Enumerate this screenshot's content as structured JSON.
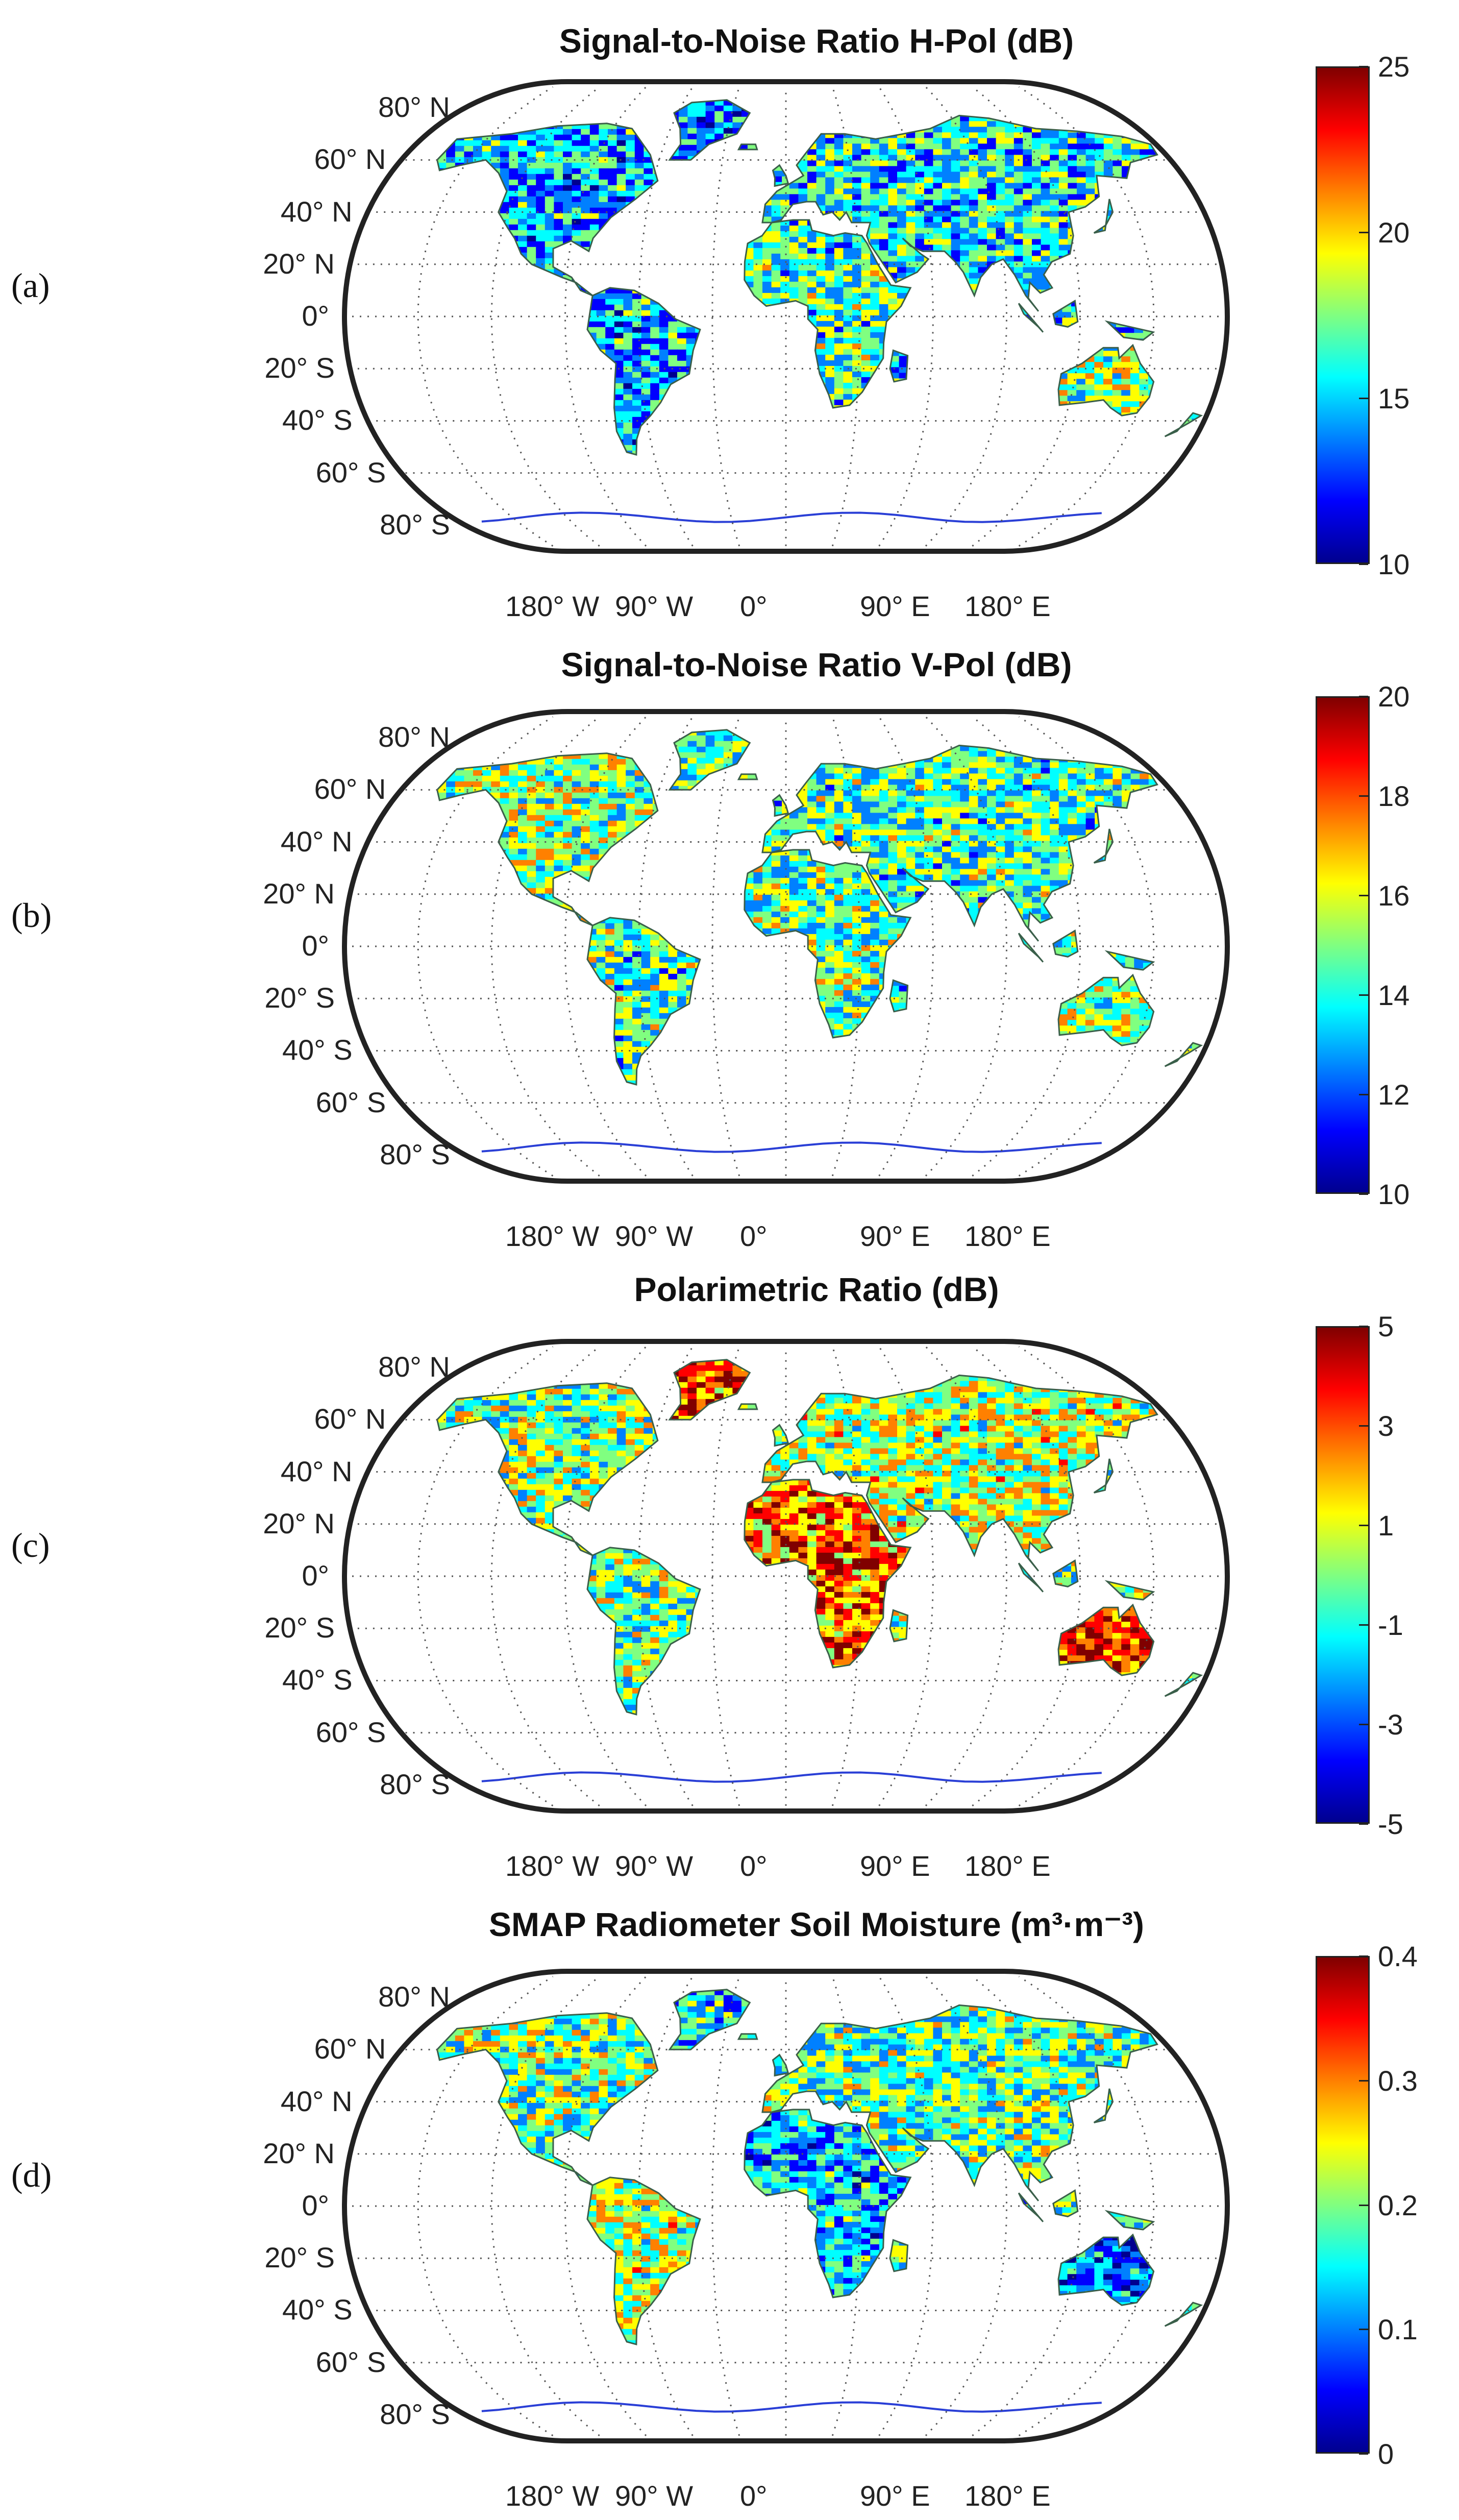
{
  "colors": {
    "jet": [
      "#00008f",
      "#0000ff",
      "#0080ff",
      "#00ffff",
      "#80ff80",
      "#ffff00",
      "#ff8000",
      "#ff0000",
      "#800000"
    ],
    "ocean": "#ffffff",
    "coast": "#2a3fd6",
    "frame": "#222222"
  },
  "lat_labels": [
    "80° N",
    "60° N",
    "40° N",
    "20° N",
    "0°",
    "20° S",
    "40° S",
    "60° S",
    "80° S"
  ],
  "lon_labels": [
    "180° W",
    "90° W",
    "0°",
    "90° E",
    "180° E"
  ],
  "panels": [
    {
      "label": "(a)",
      "title": "Signal-to-Noise Ratio H-Pol (dB)",
      "colorbar": {
        "min": 10,
        "max": 25,
        "ticks": [
          "25",
          "20",
          "15",
          "10"
        ]
      }
    },
    {
      "label": "(b)",
      "title": "Signal-to-Noise Ratio V-Pol (dB)",
      "colorbar": {
        "min": 10,
        "max": 20,
        "ticks": [
          "20",
          "18",
          "16",
          "14",
          "12",
          "10"
        ]
      }
    },
    {
      "label": "(c)",
      "title": "Polarimetric Ratio (dB)",
      "colorbar": {
        "min": -5,
        "max": 5,
        "ticks": [
          "5",
          "3",
          "1",
          "-1",
          "-3",
          "-5"
        ]
      }
    },
    {
      "label": "(d)",
      "title": "SMAP Radiometer Soil Moisture (m³·m⁻³)",
      "colorbar": {
        "min": 0,
        "max": 0.4,
        "ticks": [
          "0.4",
          "0.3",
          "0.2",
          "0.1",
          "0"
        ]
      }
    }
  ]
}
